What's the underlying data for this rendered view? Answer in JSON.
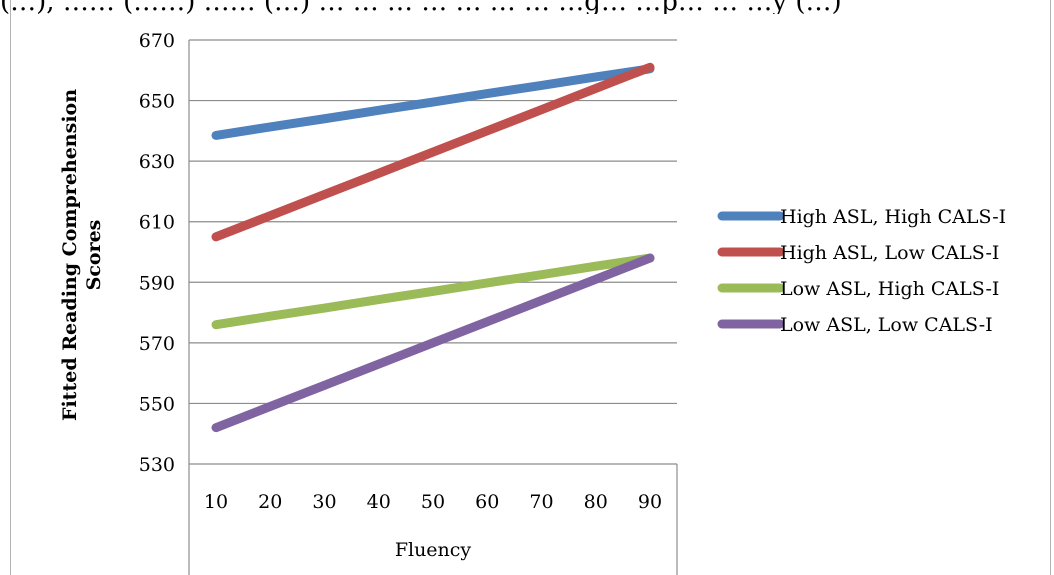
{
  "caption_fragment": "(…), …… (……) …… (…) … … … … … … … …g… …p… … …y (…)",
  "chart_data": {
    "type": "line",
    "xlabel": "Fluency",
    "ylabel_lines": [
      "Fitted Reading Comprehension",
      "Scores"
    ],
    "x": [
      10,
      20,
      30,
      40,
      50,
      60,
      70,
      80,
      90
    ],
    "ylim": [
      530,
      670
    ],
    "yticks": [
      530,
      550,
      570,
      590,
      610,
      630,
      650,
      670
    ],
    "grid": true,
    "legend_placement": "right",
    "series": [
      {
        "name": "High ASL, High CALS-I",
        "color": "#4F81BD",
        "values": [
          638.5,
          641.3,
          644.0,
          646.8,
          649.5,
          652.3,
          655.0,
          657.8,
          660.5
        ]
      },
      {
        "name": "High ASL, Low CALS-I",
        "color": "#C0504D",
        "values": [
          605.0,
          612.0,
          619.0,
          626.0,
          633.0,
          640.0,
          647.0,
          654.0,
          661.0
        ]
      },
      {
        "name": "Low ASL, High CALS-I",
        "color": "#9BBB59",
        "values": [
          576.0,
          578.8,
          581.5,
          584.3,
          587.0,
          589.8,
          592.5,
          595.3,
          598.0
        ]
      },
      {
        "name": "Low ASL, Low CALS-I",
        "color": "#8064A2",
        "values": [
          542.0,
          549.0,
          556.0,
          563.0,
          570.0,
          577.0,
          584.0,
          591.0,
          598.0
        ]
      }
    ]
  }
}
